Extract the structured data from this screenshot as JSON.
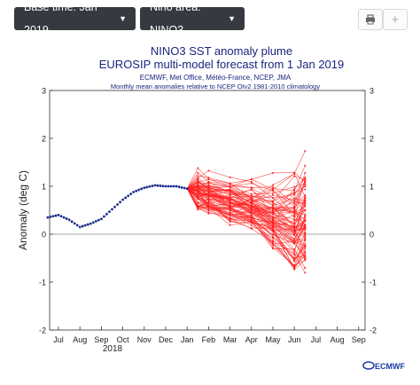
{
  "toolbar": {
    "base_time_label": "Base time: Jan 2019",
    "nino_area_label": "Nino area: NINO3",
    "print_icon": "printer-icon",
    "add_icon": "plus-icon"
  },
  "chart_data": {
    "type": "line",
    "title": "NINO3 SST anomaly plume",
    "subtitle": "EUROSIP multi-model forecast from 1 Jan 2019",
    "credits": "ECMWF, Met Office, Météo-France, NCEP, JMA",
    "note": "Monthly mean anomalies relative to NCEP OIv2 1981-2010 climatology",
    "ylabel": "Anomaly (deg C)",
    "ylim": [
      -2,
      3
    ],
    "yticks": [
      "-2",
      "-1",
      "0",
      "1",
      "2",
      "3"
    ],
    "categories": [
      "Jul",
      "Aug",
      "Sep",
      "Oct",
      "Nov",
      "Dec",
      "Jan",
      "Feb",
      "Mar",
      "Apr",
      "May",
      "Jun",
      "Jul",
      "Aug",
      "Sep"
    ],
    "year_label": "2018",
    "observed": {
      "x": [
        -0.5,
        0,
        0.5,
        1,
        1.5,
        2,
        2.5,
        3,
        3.5,
        4,
        4.5,
        5,
        5.5,
        6
      ],
      "values": [
        0.35,
        0.4,
        0.3,
        0.15,
        0.22,
        0.32,
        0.52,
        0.72,
        0.88,
        0.97,
        1.02,
        1.0,
        1.0,
        0.95
      ]
    },
    "plume": {
      "start_x": 6,
      "start_value": 0.95,
      "member_count": 80,
      "member_envelope": [
        {
          "x": 6.5,
          "min": 0.45,
          "max": 1.4
        },
        {
          "x": 7.0,
          "min": 0.35,
          "max": 1.4
        },
        {
          "x": 8.0,
          "min": 0.15,
          "max": 1.35
        },
        {
          "x": 9.0,
          "min": 0.0,
          "max": 1.25
        },
        {
          "x": 10.0,
          "min": -0.45,
          "max": 1.35
        },
        {
          "x": 11.0,
          "min": -0.9,
          "max": 1.55
        },
        {
          "x": 11.5,
          "min": -0.95,
          "max": 1.85
        }
      ],
      "color": "#ff2222"
    },
    "grid": false,
    "zero_line": true,
    "observed_color": "#1a2a8c"
  },
  "logo_text": "ECMWF"
}
